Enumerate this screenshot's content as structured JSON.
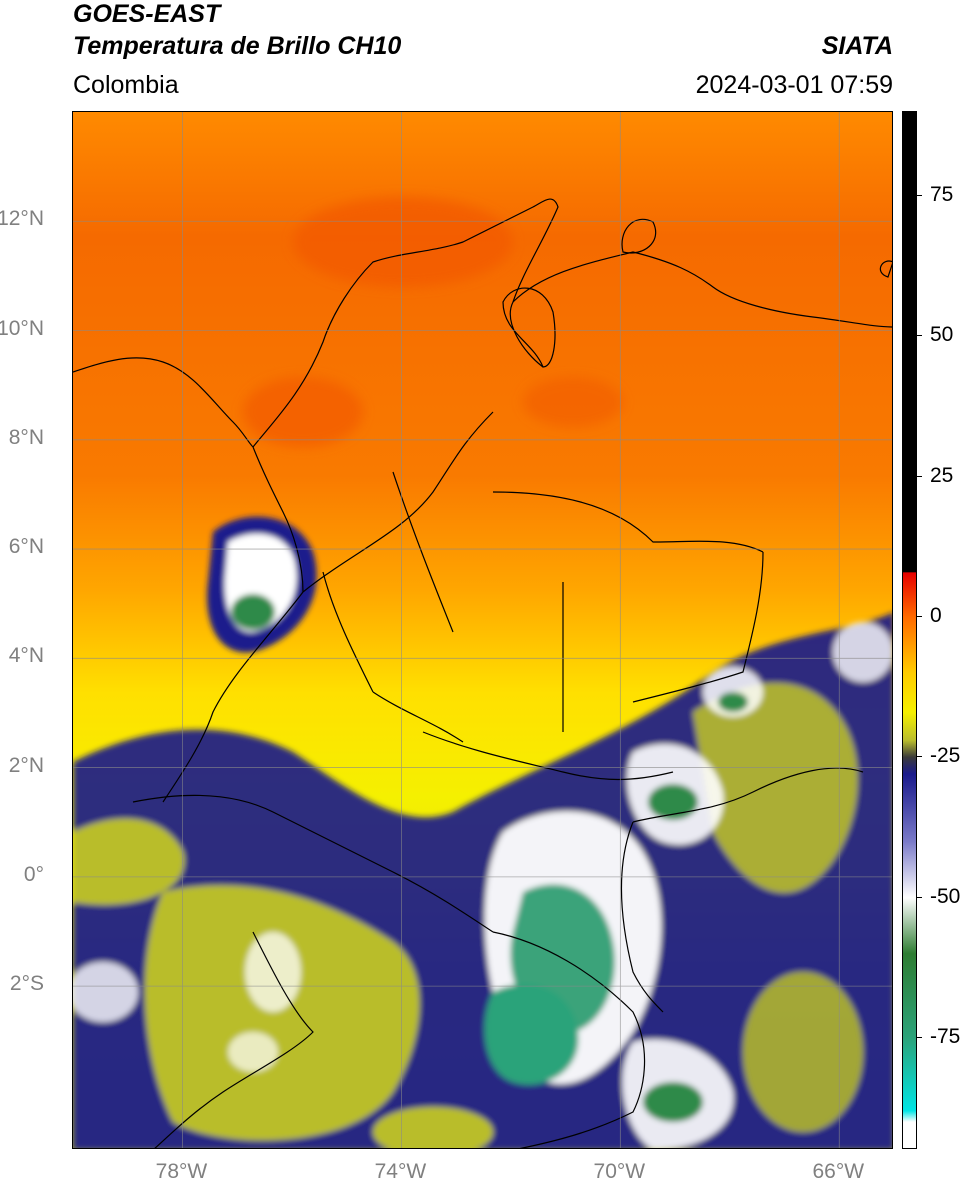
{
  "header": {
    "satellite": "GOES-EAST",
    "product": "Temperatura de Brillo CH10",
    "region": "Colombia",
    "brand": "SIATA",
    "timestamp": "2024-03-01 07:59"
  },
  "map": {
    "lon_range": [
      -80,
      -65
    ],
    "lat_range": [
      -5,
      14
    ],
    "lat_ticks": [
      {
        "value": 12,
        "label": "12°N"
      },
      {
        "value": 10,
        "label": "10°N"
      },
      {
        "value": 8,
        "label": "8°N"
      },
      {
        "value": 6,
        "label": "6°N"
      },
      {
        "value": 4,
        "label": "4°N"
      },
      {
        "value": 2,
        "label": "2°N"
      },
      {
        "value": 0,
        "label": "0°"
      },
      {
        "value": -2,
        "label": "2°S"
      }
    ],
    "lon_ticks": [
      {
        "value": -78,
        "label": "78°W"
      },
      {
        "value": -74,
        "label": "74°W"
      },
      {
        "value": -70,
        "label": "70°W"
      },
      {
        "value": -66,
        "label": "66°W"
      }
    ],
    "grid": true,
    "field_colors": {
      "warm": "#f26a00",
      "mid": "#ff9a00",
      "cool": "#f5f000",
      "olive": "#b9bd2c",
      "deep_convection": "#1a1a8c",
      "cold_tops": "#ffffff",
      "coldest": "#2e9a6a"
    }
  },
  "colorbar": {
    "range": [
      -95,
      90
    ],
    "ticks": [
      {
        "value": 75,
        "label": "75"
      },
      {
        "value": 50,
        "label": "50"
      },
      {
        "value": 25,
        "label": "25"
      },
      {
        "value": 0,
        "label": "0"
      },
      {
        "value": -25,
        "label": "-25"
      },
      {
        "value": -50,
        "label": "-50"
      },
      {
        "value": -75,
        "label": "-75"
      }
    ],
    "stops": [
      {
        "value": 90,
        "color": "#000000"
      },
      {
        "value": 8,
        "color": "#000000"
      },
      {
        "value": 7.9,
        "color": "#e60000"
      },
      {
        "value": 0,
        "color": "#ff6a00"
      },
      {
        "value": -10,
        "color": "#ffcc00"
      },
      {
        "value": -17,
        "color": "#f5f000"
      },
      {
        "value": -22,
        "color": "#b9bd2c"
      },
      {
        "value": -25,
        "color": "#3a3a3a"
      },
      {
        "value": -28,
        "color": "#1a1a8c"
      },
      {
        "value": -40,
        "color": "#7a7ac8"
      },
      {
        "value": -50,
        "color": "#ffffff"
      },
      {
        "value": -60,
        "color": "#2e7d32"
      },
      {
        "value": -75,
        "color": "#2ba37a"
      },
      {
        "value": -88,
        "color": "#00e5e5"
      },
      {
        "value": -90,
        "color": "#ffffff"
      },
      {
        "value": -95,
        "color": "#ffffff"
      }
    ]
  }
}
